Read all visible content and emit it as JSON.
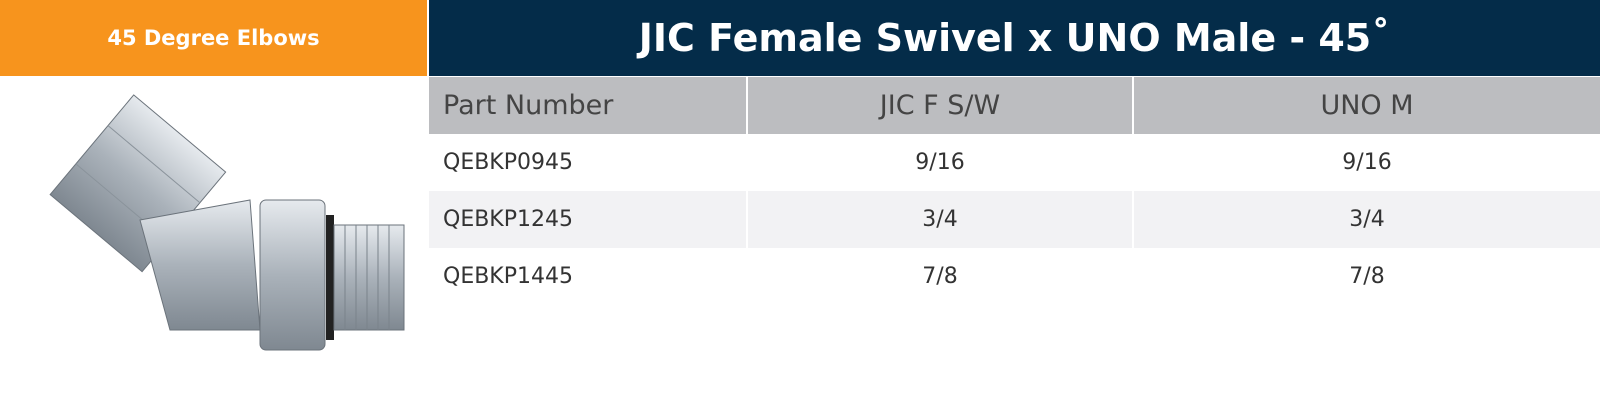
{
  "header": {
    "category": "45 Degree Elbows",
    "title": "JIC Female Swivel x UNO Male - 45˚"
  },
  "table": {
    "columns": [
      "Part Number",
      "JIC F S/W",
      "UNO M"
    ],
    "rows": [
      [
        "QEBKP0945",
        "9/16",
        "9/16"
      ],
      [
        "QEBKP1245",
        "3/4",
        "3/4"
      ],
      [
        "QEBKP1445",
        "7/8",
        "7/8"
      ]
    ]
  }
}
